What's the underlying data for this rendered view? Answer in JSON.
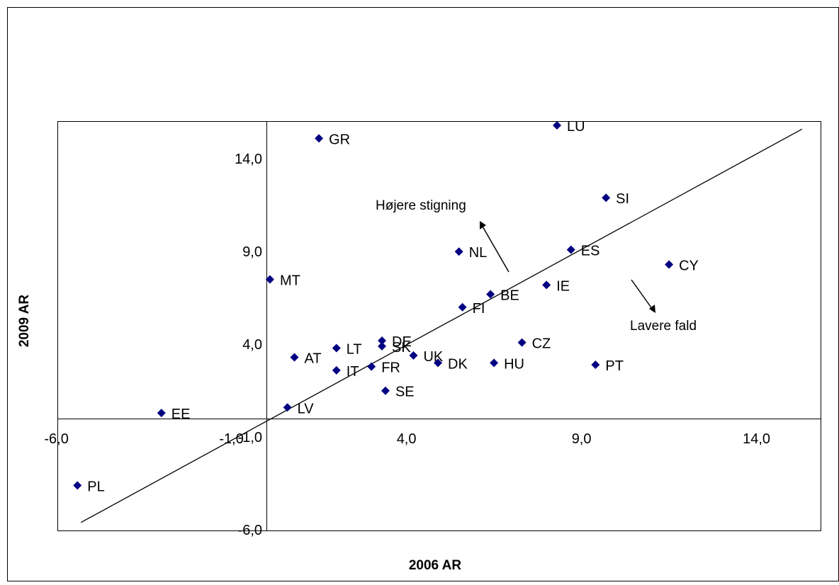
{
  "chart_data": {
    "type": "scatter",
    "title": "",
    "xlabel": "2006 AR",
    "ylabel": "2009 AR",
    "xlim": [
      -6.0,
      16.5
    ],
    "ylim": [
      -6.0,
      17.0
    ],
    "grid": false,
    "legend": "none",
    "marker_color": "#000080",
    "x_ticks": [
      "-6,0",
      "-1,0",
      "4,0",
      "9,0",
      "14,0"
    ],
    "y_ticks": [
      "-6,0",
      "-1,0",
      "4,0",
      "9,0",
      "14,0"
    ],
    "points": [
      {
        "label": "PL",
        "x": -5.4,
        "y": -3.6
      },
      {
        "label": "EE",
        "x": -3.0,
        "y": 0.3
      },
      {
        "label": "LV",
        "x": 0.6,
        "y": 0.6
      },
      {
        "label": "MT",
        "x": 0.1,
        "y": 7.5
      },
      {
        "label": "AT",
        "x": 0.8,
        "y": 3.3
      },
      {
        "label": "GR",
        "x": 1.5,
        "y": 15.1
      },
      {
        "label": "LT",
        "x": 2.0,
        "y": 3.8
      },
      {
        "label": "IT",
        "x": 2.0,
        "y": 2.6
      },
      {
        "label": "FR",
        "x": 3.0,
        "y": 2.8
      },
      {
        "label": "DE",
        "x": 3.3,
        "y": 4.2
      },
      {
        "label": "SK",
        "x": 3.3,
        "y": 3.9
      },
      {
        "label": "SE",
        "x": 3.4,
        "y": 1.5
      },
      {
        "label": "UK",
        "x": 4.2,
        "y": 3.4
      },
      {
        "label": "DK",
        "x": 4.9,
        "y": 3.0
      },
      {
        "label": "NL",
        "x": 5.5,
        "y": 9.0
      },
      {
        "label": "FI",
        "x": 5.6,
        "y": 6.0
      },
      {
        "label": "BE",
        "x": 6.4,
        "y": 6.7
      },
      {
        "label": "HU",
        "x": 6.5,
        "y": 3.0
      },
      {
        "label": "CZ",
        "x": 7.3,
        "y": 4.1
      },
      {
        "label": "IE",
        "x": 8.0,
        "y": 7.2
      },
      {
        "label": "LU",
        "x": 8.3,
        "y": 15.8
      },
      {
        "label": "ES",
        "x": 8.7,
        "y": 9.1
      },
      {
        "label": "PT",
        "x": 9.4,
        "y": 2.9
      },
      {
        "label": "SI",
        "x": 9.7,
        "y": 11.9
      },
      {
        "label": "CY",
        "x": 11.5,
        "y": 8.3
      }
    ],
    "trend_line": {
      "x": [
        -5.3,
        15.3
      ],
      "y": [
        -5.6,
        15.6
      ]
    },
    "annotations": [
      {
        "text": "Højere stigning",
        "direction": "up-left"
      },
      {
        "text": "Lavere fald",
        "direction": "down-right"
      }
    ]
  }
}
